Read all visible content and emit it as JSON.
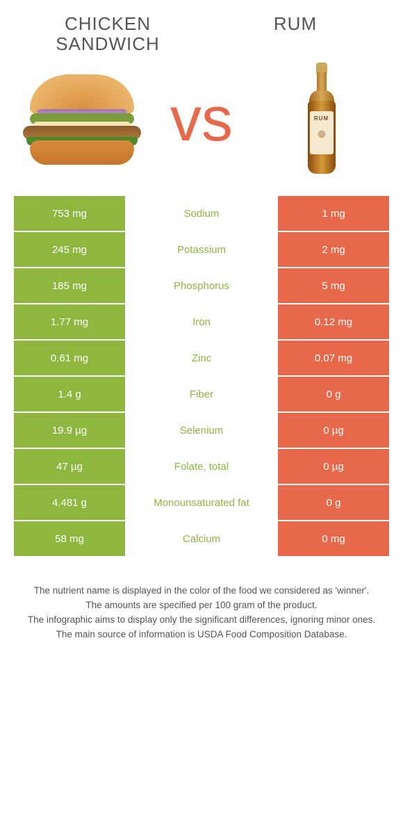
{
  "titles": {
    "left": "Chicken sandwich",
    "right": "Rum"
  },
  "vs_label": "vs",
  "bottle_label": "RUM",
  "colors": {
    "left": "#8fb63f",
    "right": "#e7684a"
  },
  "rows": [
    {
      "nutrient": "Sodium",
      "left": "753 mg",
      "right": "1 mg",
      "winner": "left"
    },
    {
      "nutrient": "Potassium",
      "left": "245 mg",
      "right": "2 mg",
      "winner": "left"
    },
    {
      "nutrient": "Phosphorus",
      "left": "185 mg",
      "right": "5 mg",
      "winner": "left"
    },
    {
      "nutrient": "Iron",
      "left": "1.77 mg",
      "right": "0.12 mg",
      "winner": "left"
    },
    {
      "nutrient": "Zinc",
      "left": "0.61 mg",
      "right": "0.07 mg",
      "winner": "left"
    },
    {
      "nutrient": "Fiber",
      "left": "1.4 g",
      "right": "0 g",
      "winner": "left"
    },
    {
      "nutrient": "Selenium",
      "left": "19.9 µg",
      "right": "0 µg",
      "winner": "left"
    },
    {
      "nutrient": "Folate, total",
      "left": "47 µg",
      "right": "0 µg",
      "winner": "left"
    },
    {
      "nutrient": "Monounsaturated fat",
      "left": "4.481 g",
      "right": "0 g",
      "winner": "left"
    },
    {
      "nutrient": "Calcium",
      "left": "58 mg",
      "right": "0 mg",
      "winner": "left"
    }
  ],
  "footer": [
    "The nutrient name is displayed in the color of the food we considered as 'winner'.",
    "The amounts are specified per 100 gram of the product.",
    "The infographic aims to display only the significant differences, ignoring minor ones.",
    "The main source of information is USDA Food Composition Database."
  ]
}
